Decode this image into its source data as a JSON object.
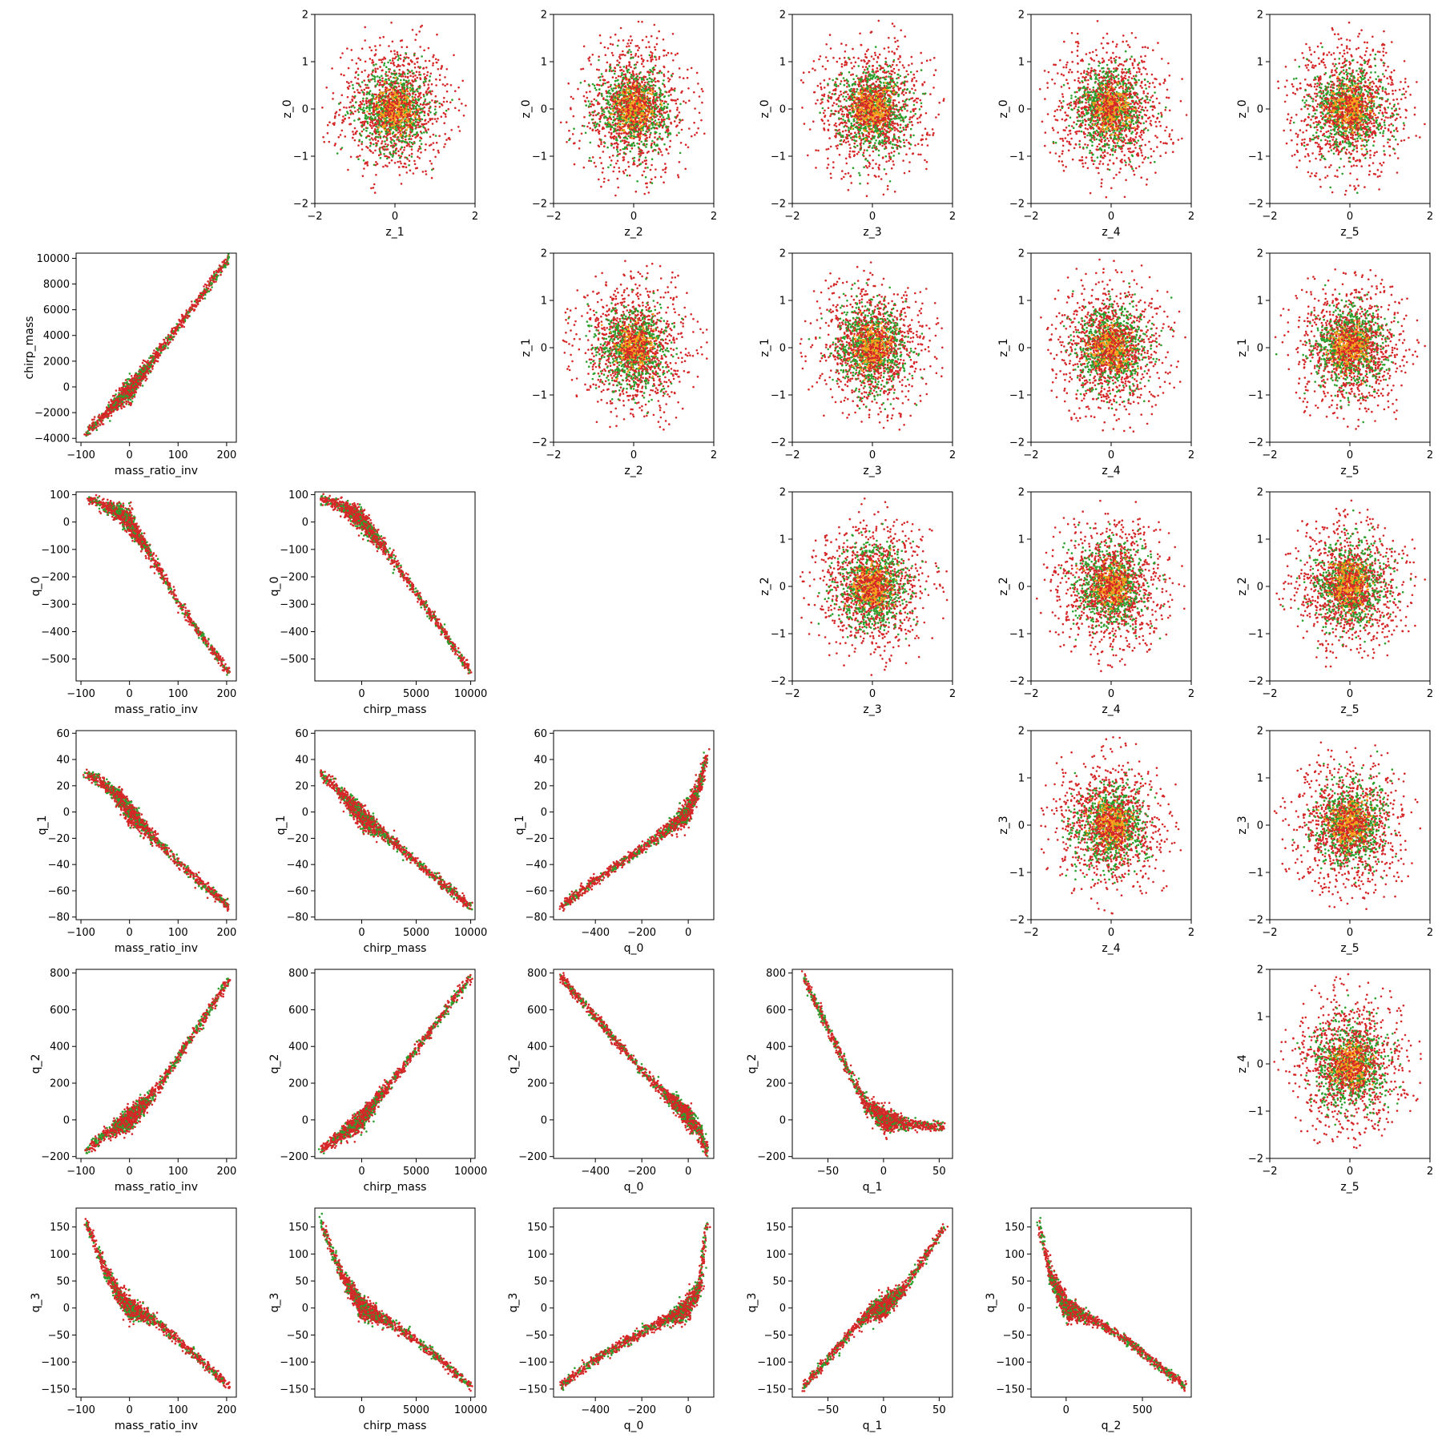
{
  "colors": {
    "outer": "#d62728",
    "mid": "#2ca02c",
    "core": "#ff9f1c",
    "frame": "#000000"
  },
  "chart_data": {
    "type": "scatter",
    "layout": "pairwise-grid",
    "lower_triangle": [
      {
        "row": 1,
        "col": 0,
        "xlabel": "mass_ratio_inv",
        "ylabel": "chirp_mass",
        "xlim": [
          -110,
          220
        ],
        "ylim": [
          -4300,
          10400
        ],
        "xticks": [
          -100,
          0,
          100,
          200
        ],
        "yticks": [
          -4000,
          -2000,
          0,
          2000,
          4000,
          6000,
          8000,
          10000
        ],
        "relation": "mass_ratio_inv vs chirp_mass",
        "curve": [
          [
            -90,
            -3600
          ],
          [
            -50,
            -2200
          ],
          [
            -20,
            -900
          ],
          [
            0,
            -300
          ],
          [
            50,
            2200
          ],
          [
            100,
            4700
          ],
          [
            150,
            7200
          ],
          [
            205,
            10000
          ]
        ]
      },
      {
        "row": 2,
        "col": 0,
        "xlabel": "mass_ratio_inv",
        "ylabel": "q_0",
        "xlim": [
          -110,
          220
        ],
        "ylim": [
          -580,
          110
        ],
        "xticks": [
          -100,
          0,
          100,
          200
        ],
        "yticks": [
          -500,
          -400,
          -300,
          -200,
          -100,
          0,
          100
        ],
        "curve": [
          [
            -85,
            85
          ],
          [
            -50,
            60
          ],
          [
            -20,
            30
          ],
          [
            0,
            0
          ],
          [
            50,
            -140
          ],
          [
            100,
            -290
          ],
          [
            150,
            -420
          ],
          [
            205,
            -550
          ]
        ]
      },
      {
        "row": 2,
        "col": 1,
        "xlabel": "chirp_mass",
        "ylabel": "q_0",
        "xlim": [
          -4300,
          10400
        ],
        "ylim": [
          -580,
          110
        ],
        "xticks": [
          0,
          5000,
          10000
        ],
        "yticks": [
          -500,
          -400,
          -300,
          -200,
          -100,
          0,
          100
        ],
        "curve": [
          [
            -3800,
            85
          ],
          [
            -2000,
            60
          ],
          [
            0,
            10
          ],
          [
            2500,
            -120
          ],
          [
            5000,
            -260
          ],
          [
            7500,
            -400
          ],
          [
            10000,
            -550
          ]
        ]
      },
      {
        "row": 3,
        "col": 0,
        "xlabel": "mass_ratio_inv",
        "ylabel": "q_1",
        "xlim": [
          -110,
          220
        ],
        "ylim": [
          -82,
          62
        ],
        "xticks": [
          -100,
          0,
          100,
          200
        ],
        "yticks": [
          -80,
          -60,
          -40,
          -20,
          0,
          20,
          40,
          60
        ],
        "curve": [
          [
            -90,
            30
          ],
          [
            -50,
            20
          ],
          [
            -20,
            10
          ],
          [
            0,
            0
          ],
          [
            50,
            -20
          ],
          [
            100,
            -38
          ],
          [
            150,
            -55
          ],
          [
            205,
            -72
          ]
        ]
      },
      {
        "row": 3,
        "col": 1,
        "xlabel": "chirp_mass",
        "ylabel": "q_1",
        "xlim": [
          -4300,
          10400
        ],
        "ylim": [
          -82,
          62
        ],
        "xticks": [
          0,
          5000,
          10000
        ],
        "yticks": [
          -80,
          -60,
          -40,
          -20,
          0,
          20,
          40,
          60
        ],
        "curve": [
          [
            -3800,
            30
          ],
          [
            -2000,
            15
          ],
          [
            0,
            -3
          ],
          [
            2500,
            -20
          ],
          [
            5000,
            -38
          ],
          [
            7500,
            -55
          ],
          [
            10000,
            -72
          ]
        ]
      },
      {
        "row": 3,
        "col": 2,
        "xlabel": "q_0",
        "ylabel": "q_1",
        "xlim": [
          -580,
          110
        ],
        "ylim": [
          -82,
          62
        ],
        "xticks": [
          -400,
          -200,
          0
        ],
        "yticks": [
          -80,
          -60,
          -40,
          -20,
          0,
          20,
          40,
          60
        ],
        "curve": [
          [
            -550,
            -72
          ],
          [
            -400,
            -52
          ],
          [
            -200,
            -28
          ],
          [
            -100,
            -15
          ],
          [
            0,
            0
          ],
          [
            50,
            20
          ],
          [
            80,
            45
          ]
        ]
      },
      {
        "row": 4,
        "col": 0,
        "xlabel": "mass_ratio_inv",
        "ylabel": "q_2",
        "xlim": [
          -110,
          220
        ],
        "ylim": [
          -210,
          820
        ],
        "xticks": [
          -100,
          0,
          100,
          200
        ],
        "yticks": [
          -200,
          0,
          200,
          400,
          600,
          800
        ],
        "curve": [
          [
            -90,
            -170
          ],
          [
            -50,
            -80
          ],
          [
            -20,
            -30
          ],
          [
            0,
            0
          ],
          [
            50,
            140
          ],
          [
            100,
            340
          ],
          [
            150,
            540
          ],
          [
            205,
            770
          ]
        ]
      },
      {
        "row": 4,
        "col": 1,
        "xlabel": "chirp_mass",
        "ylabel": "q_2",
        "xlim": [
          -4300,
          10400
        ],
        "ylim": [
          -210,
          820
        ],
        "xticks": [
          0,
          5000,
          10000
        ],
        "yticks": [
          -200,
          0,
          200,
          400,
          600,
          800
        ],
        "curve": [
          [
            -3800,
            -170
          ],
          [
            0,
            0
          ],
          [
            5000,
            380
          ],
          [
            10000,
            780
          ]
        ]
      },
      {
        "row": 4,
        "col": 2,
        "xlabel": "q_0",
        "ylabel": "q_2",
        "xlim": [
          -580,
          110
        ],
        "ylim": [
          -210,
          820
        ],
        "xticks": [
          -400,
          -200,
          0
        ],
        "yticks": [
          -200,
          0,
          200,
          400,
          600,
          800
        ],
        "curve": [
          [
            -550,
            780
          ],
          [
            -400,
            560
          ],
          [
            -200,
            270
          ],
          [
            0,
            20
          ],
          [
            50,
            -60
          ],
          [
            80,
            -170
          ]
        ]
      },
      {
        "row": 4,
        "col": 3,
        "xlabel": "q_1",
        "ylabel": "q_2",
        "xlim": [
          -82,
          62
        ],
        "ylim": [
          -210,
          820
        ],
        "xticks": [
          -50,
          0,
          50
        ],
        "yticks": [
          -200,
          0,
          200,
          400,
          600,
          800
        ],
        "curve": [
          [
            -72,
            780
          ],
          [
            -50,
            500
          ],
          [
            -30,
            250
          ],
          [
            -15,
            80
          ],
          [
            0,
            0
          ],
          [
            20,
            -20
          ],
          [
            55,
            -40
          ]
        ]
      },
      {
        "row": 5,
        "col": 0,
        "xlabel": "mass_ratio_inv",
        "ylabel": "q_3",
        "xlim": [
          -110,
          220
        ],
        "ylim": [
          -165,
          185
        ],
        "xticks": [
          -100,
          0,
          100,
          200
        ],
        "yticks": [
          -150,
          -100,
          -50,
          0,
          50,
          100,
          150
        ],
        "curve": [
          [
            -90,
            160
          ],
          [
            -50,
            70
          ],
          [
            -20,
            20
          ],
          [
            0,
            0
          ],
          [
            50,
            -20
          ],
          [
            100,
            -60
          ],
          [
            150,
            -100
          ],
          [
            205,
            -145
          ]
        ]
      },
      {
        "row": 5,
        "col": 1,
        "xlabel": "chirp_mass",
        "ylabel": "q_3",
        "xlim": [
          -4300,
          10400
        ],
        "ylim": [
          -165,
          185
        ],
        "xticks": [
          0,
          5000,
          10000
        ],
        "yticks": [
          -150,
          -100,
          -50,
          0,
          50,
          100,
          150
        ],
        "curve": [
          [
            -3800,
            160
          ],
          [
            -2000,
            70
          ],
          [
            0,
            0
          ],
          [
            2500,
            -25
          ],
          [
            5000,
            -60
          ],
          [
            7500,
            -100
          ],
          [
            10000,
            -145
          ]
        ]
      },
      {
        "row": 5,
        "col": 2,
        "xlabel": "q_0",
        "ylabel": "q_3",
        "xlim": [
          -580,
          110
        ],
        "ylim": [
          -165,
          185
        ],
        "xticks": [
          -400,
          -200,
          0
        ],
        "yticks": [
          -150,
          -100,
          -50,
          0,
          50,
          100,
          150
        ],
        "curve": [
          [
            -550,
            -145
          ],
          [
            -400,
            -95
          ],
          [
            -200,
            -45
          ],
          [
            0,
            0
          ],
          [
            50,
            40
          ],
          [
            80,
            160
          ]
        ]
      },
      {
        "row": 5,
        "col": 3,
        "xlabel": "q_1",
        "ylabel": "q_3",
        "xlim": [
          -82,
          62
        ],
        "ylim": [
          -165,
          185
        ],
        "xticks": [
          -50,
          0,
          50
        ],
        "yticks": [
          -150,
          -100,
          -50,
          0,
          50,
          100,
          150
        ],
        "curve": [
          [
            -72,
            -145
          ],
          [
            -50,
            -95
          ],
          [
            -30,
            -45
          ],
          [
            -10,
            -5
          ],
          [
            0,
            0
          ],
          [
            20,
            40
          ],
          [
            55,
            150
          ]
        ]
      },
      {
        "row": 5,
        "col": 4,
        "xlabel": "q_2",
        "ylabel": "q_3",
        "xlim": [
          -230,
          820
        ],
        "ylim": [
          -165,
          185
        ],
        "xticks": [
          0,
          500
        ],
        "yticks": [
          -150,
          -100,
          -50,
          0,
          50,
          100,
          150
        ],
        "curve": [
          [
            -180,
            160
          ],
          [
            -100,
            60
          ],
          [
            0,
            0
          ],
          [
            200,
            -25
          ],
          [
            400,
            -60
          ],
          [
            600,
            -105
          ],
          [
            780,
            -145
          ]
        ]
      }
    ],
    "upper_triangle": [
      {
        "row": 0,
        "col": 1,
        "xlabel": "z_1",
        "ylabel": "z_0"
      },
      {
        "row": 0,
        "col": 2,
        "xlabel": "z_2",
        "ylabel": "z_0"
      },
      {
        "row": 0,
        "col": 3,
        "xlabel": "z_3",
        "ylabel": "z_0"
      },
      {
        "row": 0,
        "col": 4,
        "xlabel": "z_4",
        "ylabel": "z_0"
      },
      {
        "row": 0,
        "col": 5,
        "xlabel": "z_5",
        "ylabel": "z_0"
      },
      {
        "row": 1,
        "col": 2,
        "xlabel": "z_2",
        "ylabel": "z_1"
      },
      {
        "row": 1,
        "col": 3,
        "xlabel": "z_3",
        "ylabel": "z_1"
      },
      {
        "row": 1,
        "col": 4,
        "xlabel": "z_4",
        "ylabel": "z_1"
      },
      {
        "row": 1,
        "col": 5,
        "xlabel": "z_5",
        "ylabel": "z_1"
      },
      {
        "row": 2,
        "col": 3,
        "xlabel": "z_3",
        "ylabel": "z_2"
      },
      {
        "row": 2,
        "col": 4,
        "xlabel": "z_4",
        "ylabel": "z_2"
      },
      {
        "row": 2,
        "col": 5,
        "xlabel": "z_5",
        "ylabel": "z_2"
      },
      {
        "row": 3,
        "col": 4,
        "xlabel": "z_4",
        "ylabel": "z_3"
      },
      {
        "row": 3,
        "col": 5,
        "xlabel": "z_5",
        "ylabel": "z_3"
      },
      {
        "row": 4,
        "col": 5,
        "xlabel": "z_5",
        "ylabel": "z_4"
      }
    ],
    "upper_xlim": [
      -2.0,
      2.0
    ],
    "upper_ylim": [
      -2.0,
      2.0
    ],
    "upper_xticks": [
      -2,
      0,
      2
    ],
    "upper_yticks": [
      -2,
      -1,
      0,
      1,
      2
    ],
    "upper_distribution": "standard normal cloud, radius ~1.9, center at 0",
    "grid": false
  }
}
